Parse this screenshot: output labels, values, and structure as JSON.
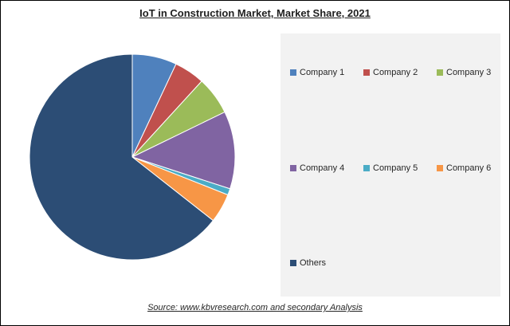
{
  "chart_data": {
    "type": "pie",
    "title": "IoT in Construction Market, Market Share, 2021",
    "source": "Source:  www.kbvresearch.com  and secondary Analysis",
    "legend_placement": "right",
    "slices": [
      {
        "name": "Company 1",
        "value": 7.0,
        "color": "#4f81bd"
      },
      {
        "name": "Company 2",
        "value": 4.8,
        "color": "#c0504d"
      },
      {
        "name": "Company 3",
        "value": 6.0,
        "color": "#9bbb59"
      },
      {
        "name": "Company 4",
        "value": 12.2,
        "color": "#8064a2"
      },
      {
        "name": "Company 5",
        "value": 1.0,
        "color": "#4bacc6"
      },
      {
        "name": "Company 6",
        "value": 4.6,
        "color": "#f79646"
      },
      {
        "name": "Others",
        "value": 64.4,
        "color": "#2c4d75"
      }
    ]
  }
}
